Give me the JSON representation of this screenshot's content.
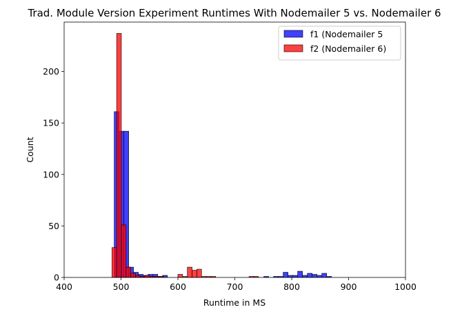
{
  "chart_data": {
    "type": "bar",
    "subtype": "histogram",
    "title": "Trad. Module Version Experiment Runtimes With Nodemailer 5 vs. Nodemailer 6",
    "xlabel": "Runtime in MS",
    "ylabel": "Count",
    "xlim": [
      400,
      1000
    ],
    "ylim": [
      0,
      248
    ],
    "xticks": [
      "400",
      "500",
      "600",
      "700",
      "800",
      "900",
      "1000"
    ],
    "yticks": [
      "0",
      "50",
      "100",
      "150",
      "200"
    ],
    "grid": false,
    "legend": {
      "placement": "top-right",
      "entries": [
        "f1 (Nodemailer 5",
        "f2 (Nodemailer 6)"
      ]
    },
    "series": [
      {
        "name": "f1 (Nodemailer 5",
        "color": "#0000ff",
        "fill_opacity": 0.75,
        "bin_width": 8.5,
        "bins": [
          {
            "x0": 488,
            "count": 161
          },
          {
            "x0": 496.5,
            "count": 142
          },
          {
            "x0": 505,
            "count": 142
          },
          {
            "x0": 513.5,
            "count": 10
          },
          {
            "x0": 522,
            "count": 5
          },
          {
            "x0": 530.5,
            "count": 3
          },
          {
            "x0": 539,
            "count": 2
          },
          {
            "x0": 547.5,
            "count": 3
          },
          {
            "x0": 556,
            "count": 3
          },
          {
            "x0": 564.5,
            "count": 1
          },
          {
            "x0": 573,
            "count": 2
          },
          {
            "x0": 751,
            "count": 1
          },
          {
            "x0": 768,
            "count": 1
          },
          {
            "x0": 776.5,
            "count": 1
          },
          {
            "x0": 785,
            "count": 5
          },
          {
            "x0": 793.5,
            "count": 2
          },
          {
            "x0": 802,
            "count": 2
          },
          {
            "x0": 810.5,
            "count": 6
          },
          {
            "x0": 819,
            "count": 2
          },
          {
            "x0": 827.5,
            "count": 4
          },
          {
            "x0": 836,
            "count": 3
          },
          {
            "x0": 844.5,
            "count": 2
          },
          {
            "x0": 853,
            "count": 4
          },
          {
            "x0": 861.5,
            "count": 1
          }
        ]
      },
      {
        "name": "f2 (Nodemailer 6)",
        "color": "#ff0000",
        "fill_opacity": 0.75,
        "bin_width": 8.3,
        "bins": [
          {
            "x0": 484,
            "count": 29
          },
          {
            "x0": 492.3,
            "count": 237
          },
          {
            "x0": 500.6,
            "count": 51
          },
          {
            "x0": 508.9,
            "count": 10
          },
          {
            "x0": 517.2,
            "count": 4
          },
          {
            "x0": 525.5,
            "count": 2
          },
          {
            "x0": 533.8,
            "count": 1
          },
          {
            "x0": 542.1,
            "count": 2
          },
          {
            "x0": 550.4,
            "count": 1
          },
          {
            "x0": 558.7,
            "count": 1
          },
          {
            "x0": 567,
            "count": 1
          },
          {
            "x0": 600,
            "count": 3
          },
          {
            "x0": 608.3,
            "count": 1
          },
          {
            "x0": 616.6,
            "count": 10
          },
          {
            "x0": 624.9,
            "count": 7
          },
          {
            "x0": 633.2,
            "count": 8
          },
          {
            "x0": 641.5,
            "count": 1
          },
          {
            "x0": 649.8,
            "count": 1
          },
          {
            "x0": 658.1,
            "count": 1
          },
          {
            "x0": 725,
            "count": 1
          },
          {
            "x0": 733.3,
            "count": 1
          }
        ]
      }
    ]
  }
}
